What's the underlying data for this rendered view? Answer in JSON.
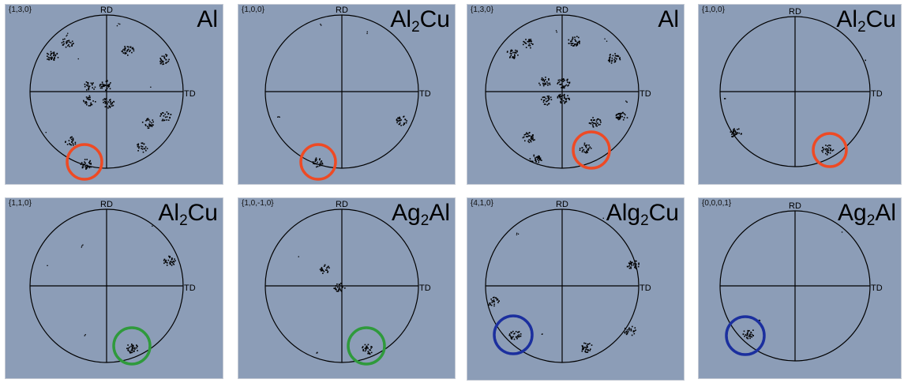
{
  "labels": {
    "rd": "RD",
    "td": "TD"
  },
  "panels": [
    {
      "hkl": "{1,3,0}",
      "phase": [
        [
          "Al",
          ""
        ]
      ],
      "highlight": "red"
    },
    {
      "hkl": "{1,0,0}",
      "phase": [
        [
          "Al",
          "2"
        ],
        [
          "Cu",
          ""
        ]
      ],
      "highlight": "red"
    },
    {
      "hkl": "{1,3,0}",
      "phase": [
        [
          "Al",
          ""
        ]
      ],
      "highlight": "red"
    },
    {
      "hkl": "{1,0,0}",
      "phase": [
        [
          "Al",
          "2"
        ],
        [
          "Cu",
          ""
        ]
      ],
      "highlight": "red"
    },
    {
      "hkl": "{1,1,0}",
      "phase": [
        [
          "Al",
          "2"
        ],
        [
          "Cu",
          ""
        ]
      ],
      "highlight": "green"
    },
    {
      "hkl": "{1,0,-1,0}",
      "phase": [
        [
          "Ag",
          "2"
        ],
        [
          "Al",
          ""
        ]
      ],
      "highlight": "green"
    },
    {
      "hkl": "{4,1,0}",
      "phase": [
        [
          "Alg",
          "2"
        ],
        [
          "Cu",
          ""
        ]
      ],
      "highlight": "blue"
    },
    {
      "hkl": "{0,0,0,1}",
      "phase": [
        [
          "Ag",
          "2"
        ],
        [
          "Al",
          ""
        ]
      ],
      "highlight": "blue"
    }
  ],
  "colors": {
    "panel_bg": "#8c9db7",
    "red": "#ee4a24",
    "green": "#2f9a3c",
    "blue": "#1b2f9e",
    "ink": "#000000"
  }
}
